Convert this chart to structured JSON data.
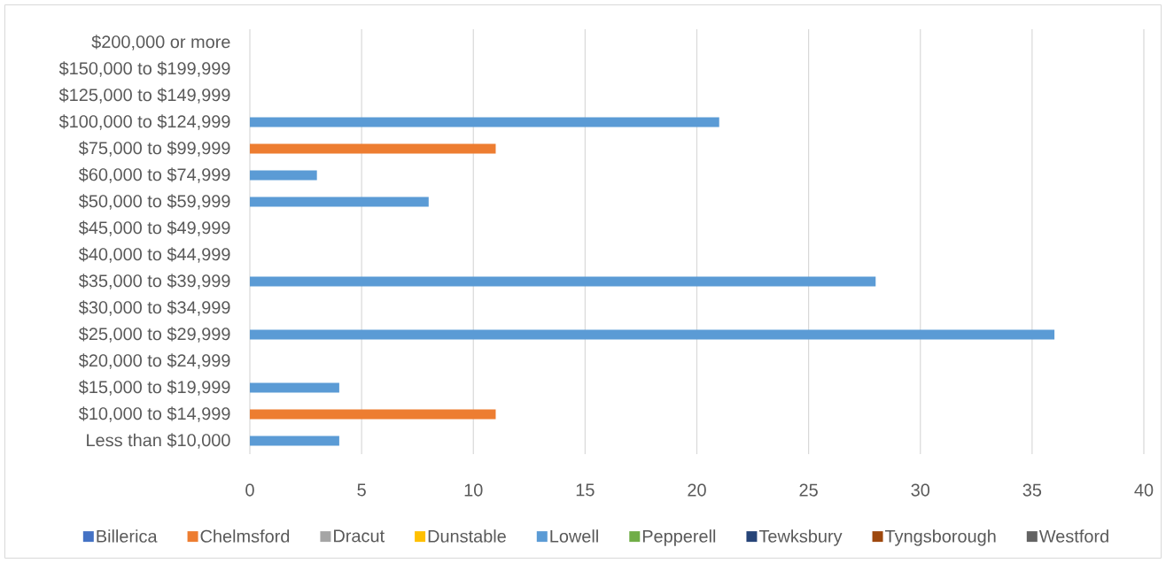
{
  "chart_data": {
    "type": "bar",
    "orientation": "horizontal",
    "stacked": true,
    "categories": [
      "$200,000 or more",
      "$150,000 to $199,999",
      "$125,000 to $149,999",
      "$100,000 to $124,999",
      "$75,000 to $99,999",
      "$60,000 to $74,999",
      "$50,000 to $59,999",
      "$45,000 to $49,999",
      "$40,000 to $44,999",
      "$35,000 to $39,999",
      "$30,000 to $34,999",
      "$25,000 to $29,999",
      "$20,000 to $24,999",
      "$15,000 to $19,999",
      "$10,000 to $14,999",
      "Less than $10,000"
    ],
    "series": [
      {
        "name": "Billerica",
        "color": "#4472c4",
        "values": [
          null,
          null,
          null,
          null,
          null,
          null,
          null,
          null,
          null,
          null,
          null,
          null,
          null,
          null,
          null,
          null
        ]
      },
      {
        "name": "Chelmsford",
        "color": "#ed7d31",
        "values": [
          null,
          null,
          null,
          null,
          11,
          null,
          null,
          null,
          null,
          null,
          null,
          null,
          null,
          null,
          11,
          null
        ]
      },
      {
        "name": "Dracut",
        "color": "#a5a5a5",
        "values": [
          null,
          null,
          null,
          null,
          null,
          null,
          null,
          null,
          null,
          null,
          null,
          null,
          null,
          null,
          null,
          null
        ]
      },
      {
        "name": "Dunstable",
        "color": "#ffc000",
        "values": [
          null,
          null,
          null,
          null,
          null,
          null,
          null,
          null,
          null,
          null,
          null,
          null,
          null,
          null,
          null,
          null
        ]
      },
      {
        "name": "Lowell",
        "color": "#5b9bd5",
        "values": [
          null,
          null,
          null,
          21,
          null,
          3,
          8,
          null,
          null,
          28,
          null,
          36,
          null,
          4,
          null,
          4
        ]
      },
      {
        "name": "Pepperell",
        "color": "#70ad47",
        "values": [
          null,
          null,
          null,
          null,
          null,
          null,
          null,
          null,
          null,
          null,
          null,
          null,
          null,
          null,
          null,
          null
        ]
      },
      {
        "name": "Tewksbury",
        "color": "#264478",
        "values": [
          null,
          null,
          null,
          null,
          null,
          null,
          null,
          null,
          null,
          null,
          null,
          null,
          null,
          null,
          null,
          null
        ]
      },
      {
        "name": "Tyngsborough",
        "color": "#9e480e",
        "values": [
          null,
          null,
          null,
          null,
          null,
          null,
          null,
          null,
          null,
          null,
          null,
          null,
          null,
          null,
          null,
          null
        ]
      },
      {
        "name": "Westford",
        "color": "#636363",
        "values": [
          null,
          null,
          null,
          null,
          null,
          null,
          null,
          null,
          null,
          null,
          null,
          null,
          null,
          null,
          null,
          null
        ]
      }
    ],
    "xlim": [
      0,
      40
    ],
    "xticks": [
      0,
      5,
      10,
      15,
      20,
      25,
      30,
      35,
      40
    ],
    "grid": "x",
    "legend": "bottom"
  }
}
